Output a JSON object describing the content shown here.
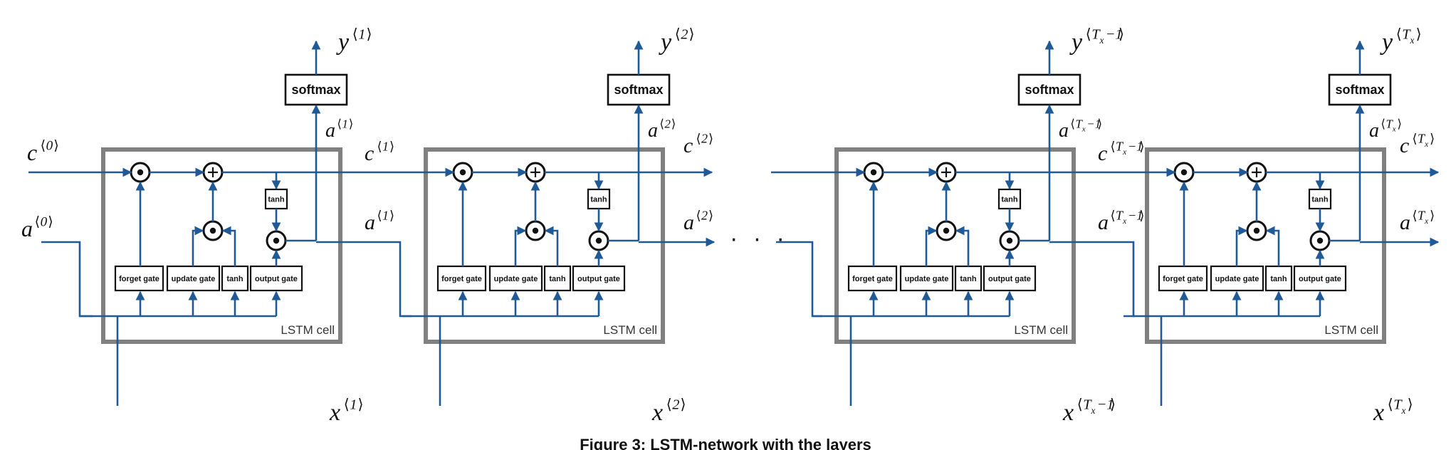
{
  "figure": {
    "caption": "Figure 3: LSTM-network with the layers",
    "ellipsis": "· · ·"
  },
  "cells": [
    {
      "label": "LSTM cell",
      "input": {
        "base": "x",
        "sup": "1",
        "sub": ""
      },
      "output": {
        "base": "y",
        "sup": "1",
        "sub": ""
      },
      "a_up": {
        "base": "a",
        "sup": "1",
        "sub": ""
      },
      "c_out": {
        "base": "c",
        "sup": "1",
        "sub": ""
      },
      "a_out": {
        "base": "a",
        "sup": "1",
        "sub": ""
      },
      "softmax": "softmax",
      "tanh": "tanh",
      "gates": {
        "forget": "forget gate",
        "update": "update gate",
        "tanh": "tanh",
        "output": "output gate"
      }
    },
    {
      "label": "LSTM cell",
      "input": {
        "base": "x",
        "sup": "2",
        "sub": ""
      },
      "output": {
        "base": "y",
        "sup": "2",
        "sub": ""
      },
      "a_up": {
        "base": "a",
        "sup": "2",
        "sub": ""
      },
      "c_out": {
        "base": "c",
        "sup": "2",
        "sub": ""
      },
      "a_out": {
        "base": "a",
        "sup": "2",
        "sub": ""
      },
      "softmax": "softmax",
      "tanh": "tanh",
      "gates": {
        "forget": "forget gate",
        "update": "update gate",
        "tanh": "tanh",
        "output": "output gate"
      }
    },
    {
      "label": "LSTM cell",
      "input": {
        "base": "x",
        "sup": "T",
        "sub": "x",
        "tail": "−1"
      },
      "output": {
        "base": "y",
        "sup": "T",
        "sub": "x",
        "tail": "−1"
      },
      "a_up": {
        "base": "a",
        "sup": "T",
        "sub": "x",
        "tail": "−1"
      },
      "c_out": {
        "base": "c",
        "sup": "T",
        "sub": "x",
        "tail": "−1"
      },
      "a_out": {
        "base": "a",
        "sup": "T",
        "sub": "x",
        "tail": "−1"
      },
      "softmax": "softmax",
      "tanh": "tanh",
      "gates": {
        "forget": "forget gate",
        "update": "update gate",
        "tanh": "tanh",
        "output": "output gate"
      }
    },
    {
      "label": "LSTM cell",
      "input": {
        "base": "x",
        "sup": "T",
        "sub": "x",
        "tail": ""
      },
      "output": {
        "base": "y",
        "sup": "T",
        "sub": "x",
        "tail": ""
      },
      "a_up": {
        "base": "a",
        "sup": "T",
        "sub": "x",
        "tail": ""
      },
      "c_out": {
        "base": "c",
        "sup": "T",
        "sub": "x",
        "tail": ""
      },
      "a_out": {
        "base": "a",
        "sup": "T",
        "sub": "x",
        "tail": ""
      },
      "softmax": "softmax",
      "tanh": "tanh",
      "gates": {
        "forget": "forget gate",
        "update": "update gate",
        "tanh": "tanh",
        "output": "output gate"
      }
    }
  ],
  "initial": {
    "c0": {
      "base": "c",
      "sup": "0",
      "sub": ""
    },
    "a0": {
      "base": "a",
      "sup": "0",
      "sub": ""
    }
  },
  "colors": {
    "wire": "#1f5a96",
    "cell_border": "#808080",
    "ink": "#111111"
  }
}
